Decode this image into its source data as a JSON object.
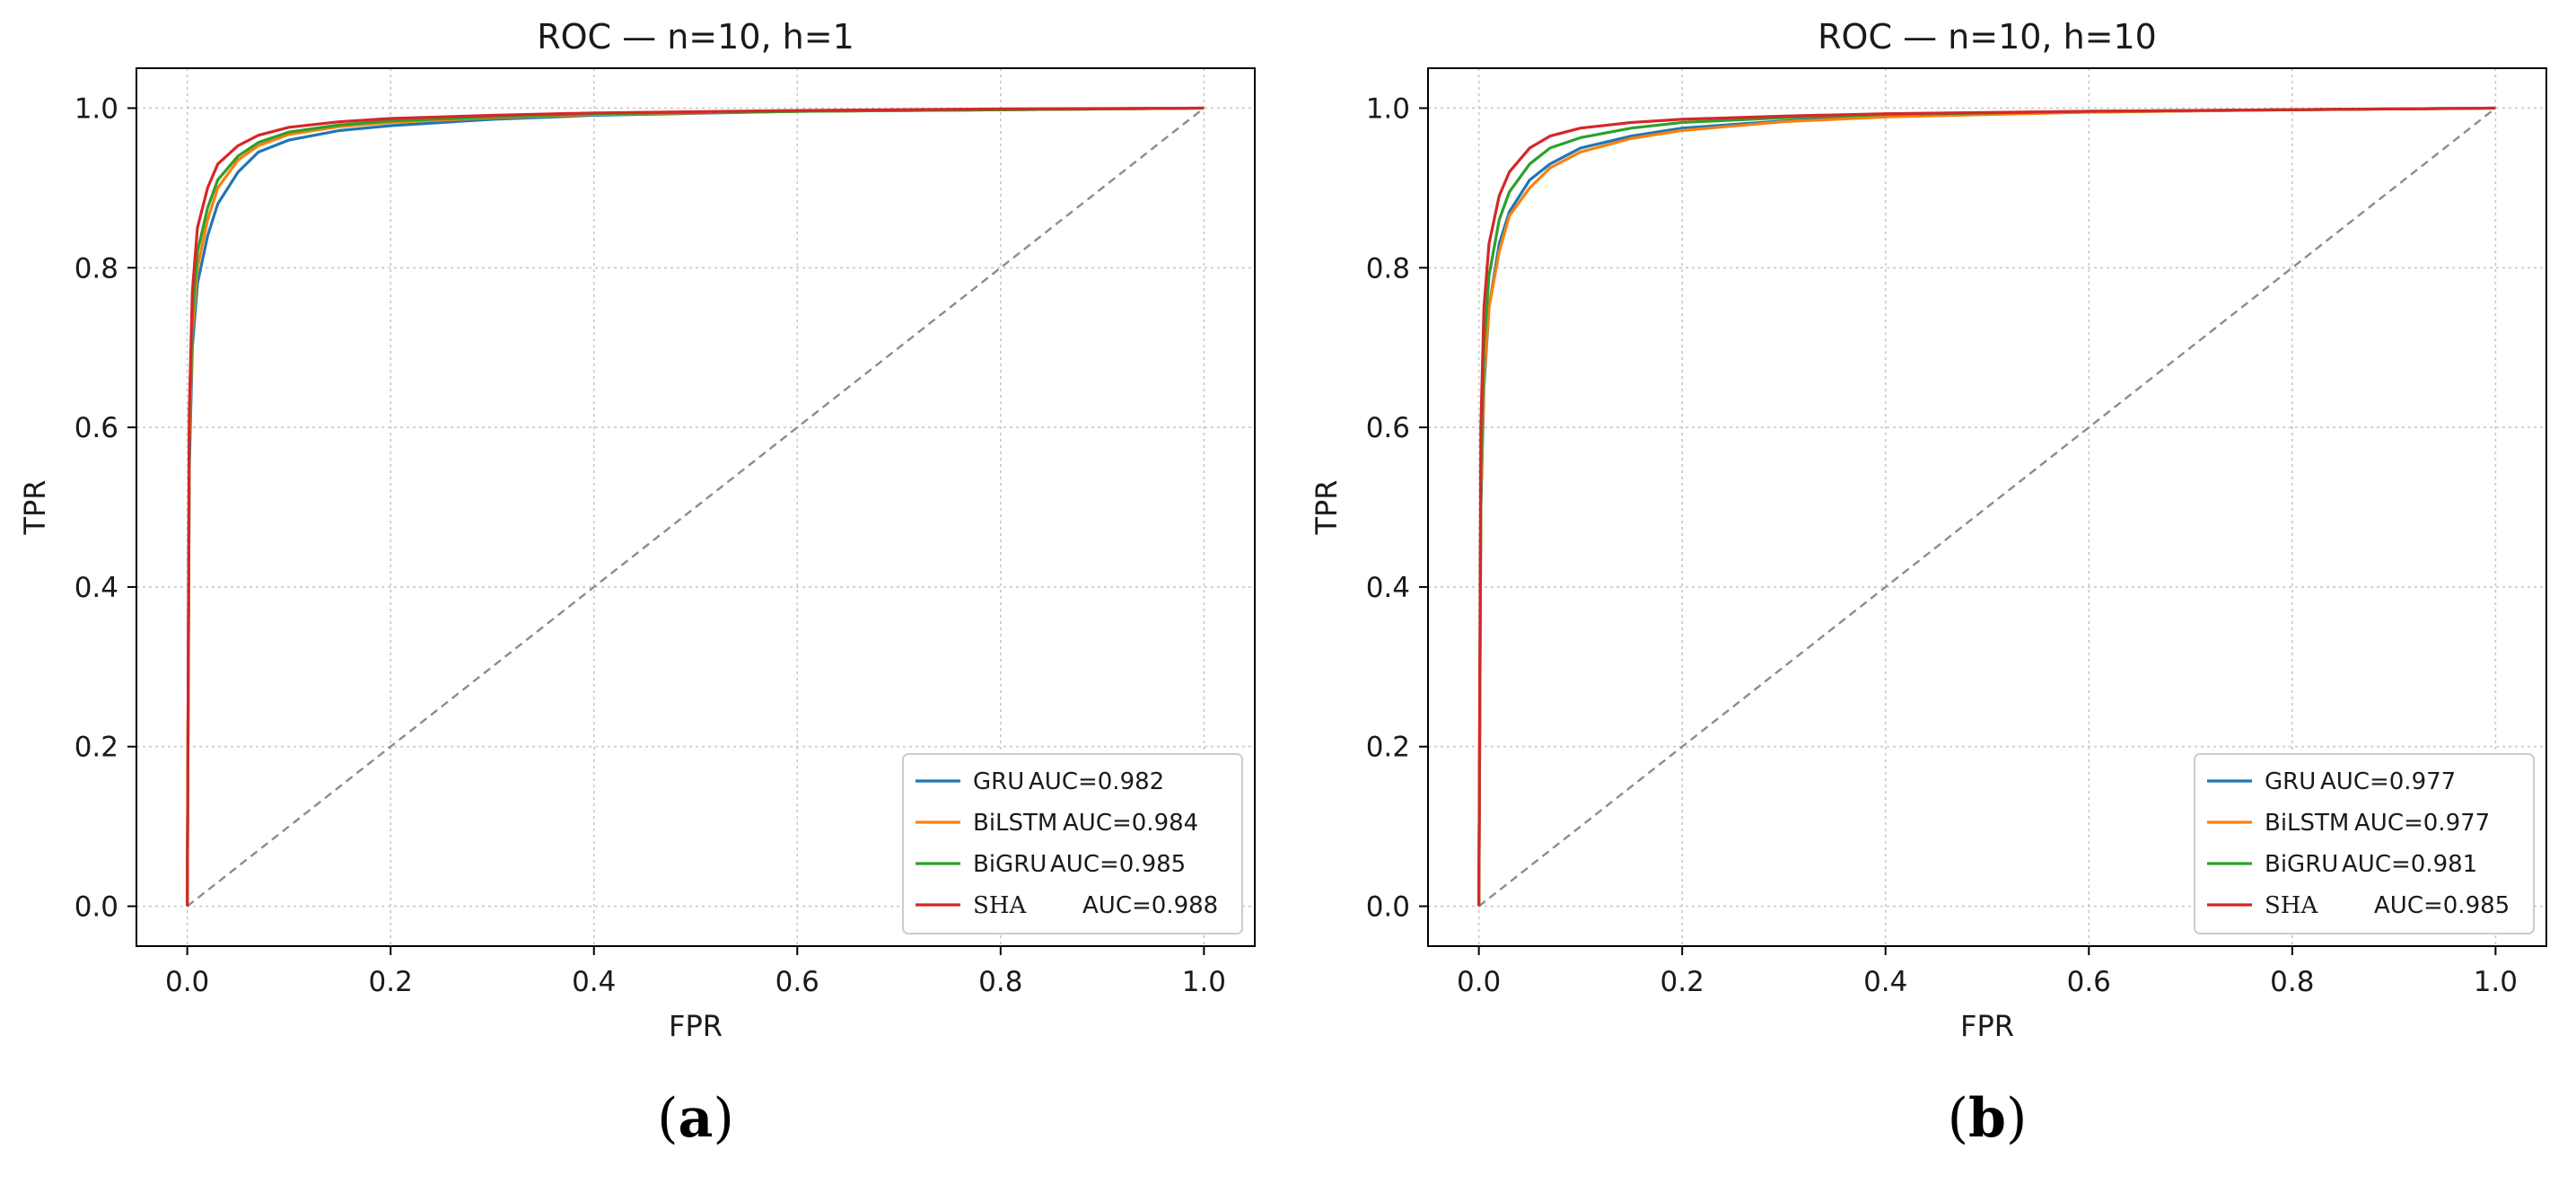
{
  "chart_data": [
    {
      "type": "line",
      "title": "ROC — n=10, h=1",
      "xlabel": "FPR",
      "ylabel": "TPR",
      "caption": "a",
      "xlim": [
        -0.05,
        1.05
      ],
      "ylim": [
        -0.05,
        1.05
      ],
      "xticks": [
        "0.0",
        "0.2",
        "0.4",
        "0.6",
        "0.8",
        "1.0"
      ],
      "yticks": [
        "0.0",
        "0.2",
        "0.4",
        "0.6",
        "0.8",
        "1.0"
      ],
      "grid": true,
      "legend_position": "bottom-right",
      "reference_line": {
        "x": [
          0,
          1
        ],
        "y": [
          0,
          1
        ],
        "color": "#8c8c8c"
      },
      "series": [
        {
          "name": "GRU",
          "auc_label": "AUC=0.982",
          "color": "#1f77b4",
          "x": [
            0,
            0.002,
            0.005,
            0.01,
            0.02,
            0.03,
            0.05,
            0.07,
            0.1,
            0.15,
            0.2,
            0.3,
            0.4,
            0.6,
            0.8,
            1.0
          ],
          "y": [
            0,
            0.55,
            0.7,
            0.78,
            0.84,
            0.88,
            0.92,
            0.945,
            0.96,
            0.972,
            0.978,
            0.986,
            0.991,
            0.996,
            0.998,
            1.0
          ]
        },
        {
          "name": "BiLSTM",
          "auc_label": "AUC=0.984",
          "color": "#ff7f0e",
          "x": [
            0,
            0.002,
            0.005,
            0.01,
            0.02,
            0.03,
            0.05,
            0.07,
            0.1,
            0.15,
            0.2,
            0.3,
            0.4,
            0.6,
            0.8,
            1.0
          ],
          "y": [
            0,
            0.58,
            0.72,
            0.8,
            0.86,
            0.9,
            0.935,
            0.953,
            0.967,
            0.977,
            0.982,
            0.988,
            0.992,
            0.996,
            0.998,
            1.0
          ]
        },
        {
          "name": "BiGRU",
          "auc_label": "AUC=0.985",
          "color": "#2ca02c",
          "x": [
            0,
            0.002,
            0.005,
            0.01,
            0.02,
            0.03,
            0.05,
            0.07,
            0.1,
            0.15,
            0.2,
            0.3,
            0.4,
            0.6,
            0.8,
            1.0
          ],
          "y": [
            0,
            0.6,
            0.74,
            0.82,
            0.875,
            0.91,
            0.94,
            0.957,
            0.97,
            0.979,
            0.984,
            0.989,
            0.993,
            0.996,
            0.998,
            1.0
          ]
        },
        {
          "name": "SHA",
          "auc_label": "AUC=0.988",
          "color": "#d62728",
          "x": [
            0,
            0.002,
            0.005,
            0.01,
            0.02,
            0.03,
            0.05,
            0.07,
            0.1,
            0.15,
            0.2,
            0.3,
            0.4,
            0.6,
            0.8,
            1.0
          ],
          "y": [
            0,
            0.62,
            0.77,
            0.85,
            0.9,
            0.93,
            0.953,
            0.966,
            0.976,
            0.983,
            0.987,
            0.991,
            0.994,
            0.997,
            0.999,
            1.0
          ]
        }
      ]
    },
    {
      "type": "line",
      "title": "ROC — n=10, h=10",
      "xlabel": "FPR",
      "ylabel": "TPR",
      "caption": "b",
      "xlim": [
        -0.05,
        1.05
      ],
      "ylim": [
        -0.05,
        1.05
      ],
      "xticks": [
        "0.0",
        "0.2",
        "0.4",
        "0.6",
        "0.8",
        "1.0"
      ],
      "yticks": [
        "0.0",
        "0.2",
        "0.4",
        "0.6",
        "0.8",
        "1.0"
      ],
      "grid": true,
      "legend_position": "bottom-right",
      "reference_line": {
        "x": [
          0,
          1
        ],
        "y": [
          0,
          1
        ],
        "color": "#8c8c8c"
      },
      "series": [
        {
          "name": "GRU",
          "auc_label": "AUC=0.977",
          "color": "#1f77b4",
          "x": [
            0,
            0.002,
            0.005,
            0.01,
            0.02,
            0.03,
            0.05,
            0.07,
            0.1,
            0.15,
            0.2,
            0.3,
            0.4,
            0.6,
            0.8,
            1.0
          ],
          "y": [
            0,
            0.5,
            0.65,
            0.75,
            0.83,
            0.87,
            0.91,
            0.93,
            0.95,
            0.965,
            0.975,
            0.984,
            0.99,
            0.995,
            0.998,
            1.0
          ]
        },
        {
          "name": "BiLSTM",
          "auc_label": "AUC=0.977",
          "color": "#ff7f0e",
          "x": [
            0,
            0.002,
            0.005,
            0.01,
            0.02,
            0.03,
            0.05,
            0.07,
            0.1,
            0.15,
            0.2,
            0.3,
            0.4,
            0.6,
            0.8,
            1.0
          ],
          "y": [
            0,
            0.52,
            0.66,
            0.75,
            0.82,
            0.865,
            0.9,
            0.925,
            0.945,
            0.962,
            0.972,
            0.983,
            0.989,
            0.995,
            0.998,
            1.0
          ]
        },
        {
          "name": "BiGRU",
          "auc_label": "AUC=0.981",
          "color": "#2ca02c",
          "x": [
            0,
            0.002,
            0.005,
            0.01,
            0.02,
            0.03,
            0.05,
            0.07,
            0.1,
            0.15,
            0.2,
            0.3,
            0.4,
            0.6,
            0.8,
            1.0
          ],
          "y": [
            0,
            0.55,
            0.7,
            0.79,
            0.86,
            0.895,
            0.93,
            0.95,
            0.963,
            0.975,
            0.982,
            0.988,
            0.992,
            0.996,
            0.998,
            1.0
          ]
        },
        {
          "name": "SHA",
          "auc_label": "AUC=0.985",
          "color": "#d62728",
          "x": [
            0,
            0.002,
            0.005,
            0.01,
            0.02,
            0.03,
            0.05,
            0.07,
            0.1,
            0.15,
            0.2,
            0.3,
            0.4,
            0.6,
            0.8,
            1.0
          ],
          "y": [
            0,
            0.6,
            0.75,
            0.83,
            0.89,
            0.92,
            0.95,
            0.965,
            0.975,
            0.982,
            0.986,
            0.99,
            0.993,
            0.996,
            0.998,
            1.0
          ]
        }
      ]
    }
  ]
}
